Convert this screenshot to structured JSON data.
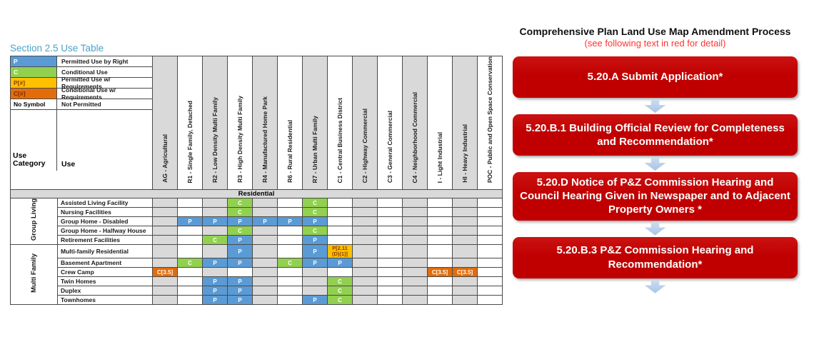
{
  "colors": {
    "permitted": "#5B9BD5",
    "conditional": "#92D050",
    "permitted_req": "#FFC000",
    "conditional_req": "#E36C0A",
    "shade": "#D9D9D9",
    "section_title": "#4AA3C8",
    "flow_box": "#C00000",
    "flow_arrow": "#A9C4E6",
    "subtitle_red": "#FF3333"
  },
  "use_table": {
    "title": "Section 2.5 Use Table",
    "legend": [
      {
        "symbol": "P",
        "type": "P",
        "label": "Permitted Use by Right"
      },
      {
        "symbol": "C",
        "type": "C",
        "label": "Conditional Use"
      },
      {
        "symbol": "P[#]",
        "type": "PR",
        "label": "Permitted Use w/ Requirements"
      },
      {
        "symbol": "C[#]",
        "type": "CR",
        "label": "Conditional Use w/ Requirements"
      },
      {
        "symbol": "No Symbol",
        "type": "none",
        "label": "Not Permitted"
      }
    ],
    "corner": {
      "col1": "Use Category",
      "col2": "Use"
    },
    "zones": [
      {
        "id": "AG",
        "label": "AG - Agricultural",
        "shade": true
      },
      {
        "id": "R1",
        "label": "R1 - Single Family, Detached",
        "shade": false
      },
      {
        "id": "R2",
        "label": "R2 - Low Density Multi Family",
        "shade": true
      },
      {
        "id": "R3",
        "label": "R3 - High Density Multi Family",
        "shade": false
      },
      {
        "id": "R4",
        "label": "R4 - Manufactured Home Park",
        "shade": true
      },
      {
        "id": "R6",
        "label": "R6 - Rural Residential",
        "shade": false
      },
      {
        "id": "R7",
        "label": "R7 - Urban Multi Family",
        "shade": true
      },
      {
        "id": "C1",
        "label": "C1 - Central Business District",
        "shade": false
      },
      {
        "id": "C2",
        "label": "C2 - Highway Commercial",
        "shade": true
      },
      {
        "id": "C3",
        "label": "C3 - General Commercial",
        "shade": false
      },
      {
        "id": "C4",
        "label": "C4 - Neighborhood Commercial",
        "shade": true
      },
      {
        "id": "I",
        "label": "I - Light Industrial",
        "shade": false
      },
      {
        "id": "HI",
        "label": "HI - Heavy Industrial",
        "shade": true
      },
      {
        "id": "POC",
        "label": "POC - Public and Open Space Conservation",
        "shade": false
      }
    ],
    "banner": "Residential",
    "groups": [
      {
        "name": "Group Living",
        "rows": [
          {
            "use": "Assisted Living Facility",
            "cells": {
              "R3": "C",
              "R7": "C"
            }
          },
          {
            "use": "Nursing Facilities",
            "cells": {
              "R3": "C",
              "R7": "C"
            }
          },
          {
            "use": "Group Home - Disabled",
            "cells": {
              "R1": "P",
              "R2": "P",
              "R3": "P",
              "R4": "P",
              "R6": "P",
              "R7": "P"
            }
          },
          {
            "use": "Group Home - Halfway House",
            "cells": {
              "R3": "C",
              "R7": "C"
            }
          },
          {
            "use": "Retirement Facilities",
            "cells": {
              "R2": "C",
              "R3": "P",
              "R7": "P"
            }
          }
        ]
      },
      {
        "name": "Multi Family",
        "rows": [
          {
            "use": "Multi-family Residential",
            "cells": {
              "R3": "P",
              "R7": "P",
              "C1": "P[2.11 (D)(1)]"
            }
          },
          {
            "use": "Basement Apartment",
            "cells": {
              "R1": "C",
              "R2": "P",
              "R3": "P",
              "R6": "C",
              "R7": "P",
              "C1": "P"
            }
          },
          {
            "use": "Crew Camp",
            "cells": {
              "AG": "C[3.5]",
              "I": "C[3.5]",
              "HI": "C[3.5]"
            }
          },
          {
            "use": "Twin Homes",
            "cells": {
              "R2": "P",
              "R3": "P",
              "C1": "C"
            }
          },
          {
            "use": "Duplex",
            "cells": {
              "R2": "P",
              "R3": "P",
              "C1": "C"
            }
          },
          {
            "use": "Townhomes",
            "cells": {
              "R2": "P",
              "R3": "P",
              "R7": "P",
              "C1": "C"
            }
          }
        ]
      }
    ]
  },
  "flowchart": {
    "title": "Comprehensive Plan Land Use Map Amendment Process",
    "subtitle": "(see following text in red for detail)",
    "steps": [
      {
        "label": "5.20.A Submit Application*"
      },
      {
        "label": "5.20.B.1 Building Official Review for Completeness and Recommendation*"
      },
      {
        "label": "5.20.D Notice of P&Z Commission Hearing and Council Hearing Given in Newspaper and to Adjacent Property Owners *"
      },
      {
        "label": "5.20.B.3 P&Z Commission Hearing and Recommendation*"
      }
    ]
  }
}
